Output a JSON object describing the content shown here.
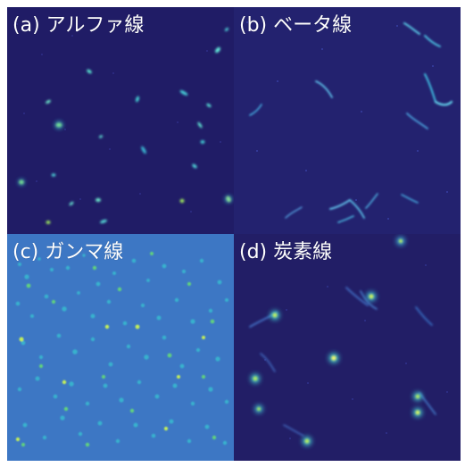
{
  "panels": [
    {
      "id": "alpha",
      "label": "(a) アルファ線"
    },
    {
      "id": "beta",
      "label": "(b) ベータ線"
    },
    {
      "id": "gamma",
      "label": "(c) ガンマ線"
    },
    {
      "id": "carbon",
      "label": "(d) 炭素線"
    }
  ],
  "colors": {
    "background_dark": "#1f1b62",
    "background_mid": "#2b2b8a",
    "gamma_background": "#2b5aa8",
    "track_cyan": "#4ad7d0",
    "track_green": "#9bea54",
    "track_yellow": "#f3f36b",
    "label_text": "#ffffff"
  }
}
